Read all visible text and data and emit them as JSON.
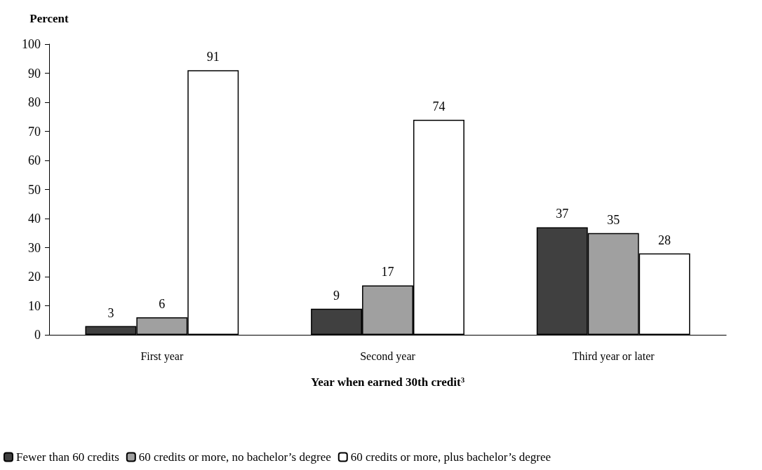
{
  "chart_data": {
    "type": "bar",
    "ylabel": "Percent",
    "xlabel": "Year when earned 30th credit$^{3}$",
    "categories": [
      "First year",
      "Second year",
      "Third year or later"
    ],
    "series": [
      {
        "name": "Fewer than 60 credits",
        "color": "#404040",
        "values": [
          3,
          9,
          37
        ]
      },
      {
        "name": "60 credits or more, no bachelor’s degree",
        "color": "#a0a0a0",
        "values": [
          6,
          17,
          35
        ]
      },
      {
        "name": "60 credits or more, plus bachelor’s degree",
        "color": "#ffffff",
        "values": [
          91,
          74,
          28
        ]
      }
    ],
    "ylim": [
      0,
      100
    ],
    "yticks": [
      0,
      10,
      20,
      30,
      40,
      50,
      60,
      70,
      80,
      90,
      100
    ],
    "grid": false,
    "legend": "bottom",
    "data_labels": true
  }
}
